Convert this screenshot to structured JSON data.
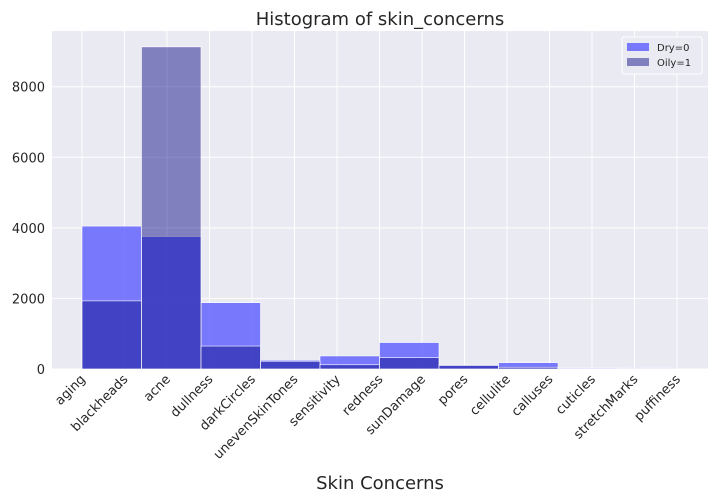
{
  "chart_data": {
    "type": "bar",
    "title": "Histogram of skin_concerns",
    "xlabel": "Skin Concerns",
    "ylabel": "",
    "categories": [
      "aging",
      "blackheads",
      "acne",
      "dullness",
      "darkCircles",
      "unevenSkinTones",
      "sensitivity",
      "redness",
      "sunDamage",
      "pores",
      "cellulite",
      "calluses",
      "cuticles",
      "stretchMarks",
      "puffiness"
    ],
    "bins": [
      {
        "bin": 1,
        "dry": 4050,
        "oily": 1930
      },
      {
        "bin": 2,
        "dry": 3750,
        "oily": 9130
      },
      {
        "bin": 3,
        "dry": 1880,
        "oily": 650
      },
      {
        "bin": 4,
        "dry": 250,
        "oily": 220
      },
      {
        "bin": 5,
        "dry": 370,
        "oily": 120
      },
      {
        "bin": 6,
        "dry": 750,
        "oily": 320
      },
      {
        "bin": 7,
        "dry": 110,
        "oily": 100
      },
      {
        "bin": 8,
        "dry": 180,
        "oily": 50
      },
      {
        "bin": 9,
        "dry": 30,
        "oily": 10
      },
      {
        "bin": 10,
        "dry": 40,
        "oily": 20
      }
    ],
    "series": [
      {
        "name": "Dry=0",
        "color": "#5b5bff",
        "opacity": 0.8
      },
      {
        "name": "Oily=1",
        "color": "#000080",
        "opacity": 0.45
      }
    ],
    "yticks": [
      0,
      2000,
      4000,
      6000,
      8000
    ],
    "ylim": [
      0,
      9580
    ],
    "grid": true,
    "legend_position": "top-right",
    "background": "#eaeaf2"
  }
}
